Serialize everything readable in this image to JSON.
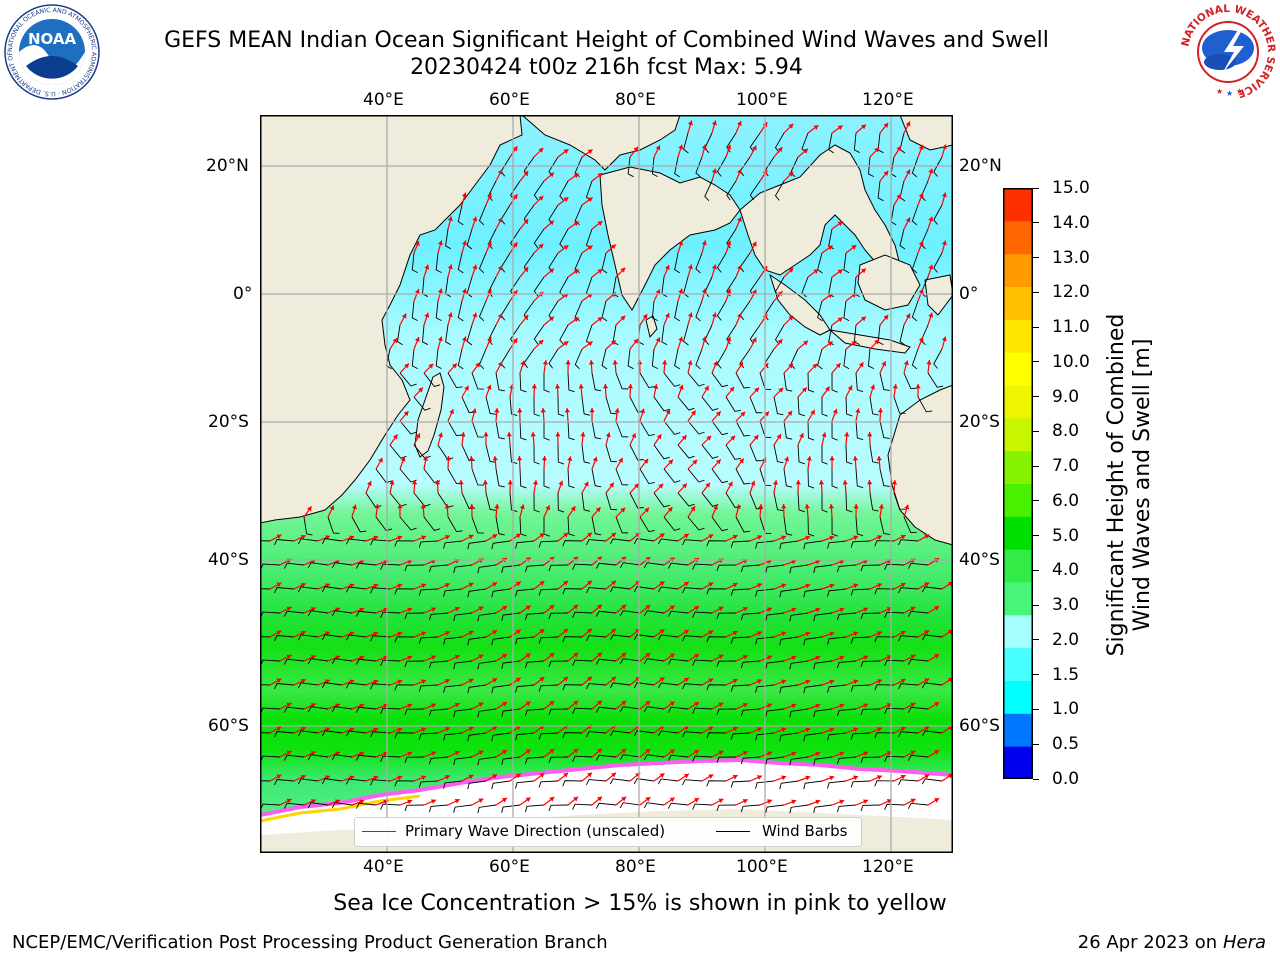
{
  "title": {
    "line1": "GEFS MEAN Indian Ocean Significant Height of Combined Wind Waves and Swell",
    "line2": "20230424 t00z 216h fcst   Max: 5.94"
  },
  "axes": {
    "lon_labels": [
      "40°E",
      "60°E",
      "80°E",
      "100°E",
      "120°E"
    ],
    "lat_labels": [
      "20°N",
      "0°",
      "20°S",
      "40°S",
      "60°S"
    ]
  },
  "colorbar": {
    "label_line1": "Significant Height of Combined",
    "label_line2": "Wind Waves and Swell [m]",
    "ticks": [
      "15.0",
      "14.0",
      "13.0",
      "12.0",
      "11.0",
      "10.0",
      "9.0",
      "8.0",
      "7.0",
      "6.0",
      "5.0",
      "4.0",
      "3.0",
      "2.0",
      "1.5",
      "1.0",
      "0.5",
      "0.0"
    ],
    "colors": [
      "#0000ee",
      "#0077ff",
      "#00ffff",
      "#47ffff",
      "#a6ffff",
      "#48f57a",
      "#32eb44",
      "#00e000",
      "#49f000",
      "#85f200",
      "#c8f500",
      "#edf500",
      "#ffff00",
      "#ffe600",
      "#ffc000",
      "#ff9a00",
      "#ff6600",
      "#ff3000",
      "#ff0000"
    ]
  },
  "legend": {
    "wave_label": "Primary Wave Direction (unscaled)",
    "wind_label": "Wind Barbs",
    "wave_color": "#ff0000",
    "wind_color": "#000000"
  },
  "caption": "Sea Ice Concentration > 15% is shown in pink to yellow",
  "footer": {
    "left": "NCEP/EMC/Verification Post Processing Product Generation Branch",
    "date": "26 Apr 2023 on ",
    "host": "Hera"
  },
  "logos": {
    "noaa_text": "NOAA",
    "noaa_ring": "NATIONAL OCEANIC AND ATMOSPHERIC ADMINISTRATION · U.S. DEPARTMENT OF COMMERCE ·",
    "nws_ring": "NATIONAL WEATHER SERVICE"
  },
  "map_colors": {
    "land": "#efecdc",
    "ice": "#ffffff",
    "grid": "#aaaaaa"
  }
}
